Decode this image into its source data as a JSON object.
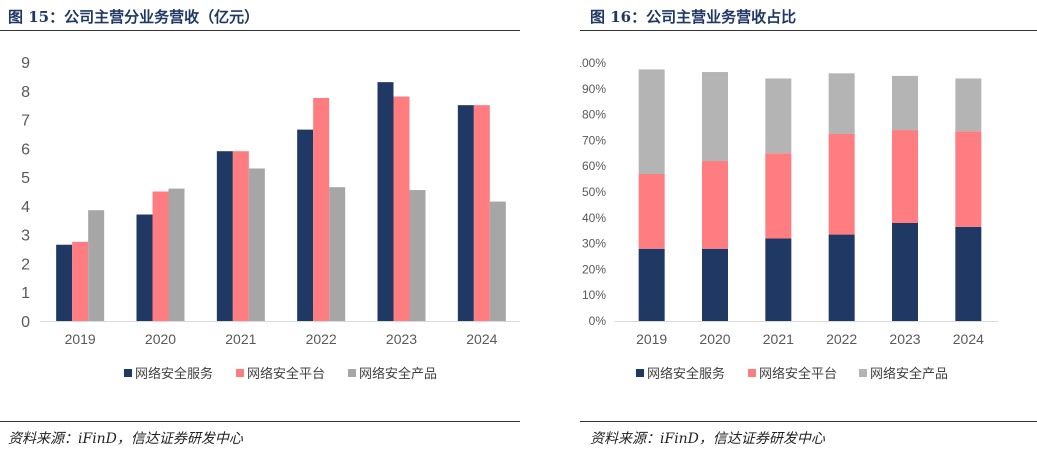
{
  "figures": [
    {
      "title": "图 15：公司主营分业务营收（亿元）",
      "source": "资料来源：iFinD，信达证券研发中心"
    },
    {
      "title": "图 16：公司主营业务营收占比",
      "source": "资料来源：iFinD，信达证券研发中心"
    }
  ],
  "chart_data": [
    {
      "type": "bar",
      "title": "图 15：公司主营分业务营收（亿元）",
      "categories": [
        "2019",
        "2020",
        "2021",
        "2022",
        "2023",
        "2024"
      ],
      "series": [
        {
          "name": "网络安全服务",
          "color": "#1f3864",
          "values": [
            2.65,
            3.7,
            5.9,
            6.65,
            8.3,
            7.5
          ]
        },
        {
          "name": "网络安全平台",
          "color": "#ff7c80",
          "values": [
            2.75,
            4.5,
            5.9,
            7.75,
            7.8,
            7.5
          ]
        },
        {
          "name": "网络安全产品",
          "color": "#a6a6a6",
          "values": [
            3.85,
            4.6,
            5.3,
            4.65,
            4.55,
            4.15
          ]
        }
      ],
      "ylim": [
        0,
        9
      ],
      "yticks": [
        "0",
        "1",
        "2",
        "3",
        "4",
        "5",
        "6",
        "7",
        "8",
        "9"
      ],
      "legend": "bottom",
      "grid": false
    },
    {
      "type": "bar",
      "stacked": true,
      "title": "图 16：公司主营业务营收占比",
      "categories": [
        "2019",
        "2020",
        "2021",
        "2022",
        "2023",
        "2024"
      ],
      "series": [
        {
          "name": "网络安全服务",
          "color": "#1f3864",
          "values": [
            0.28,
            0.28,
            0.32,
            0.335,
            0.38,
            0.365
          ]
        },
        {
          "name": "网络安全平台",
          "color": "#ff7c80",
          "values": [
            0.29,
            0.34,
            0.33,
            0.39,
            0.36,
            0.37
          ]
        },
        {
          "name": "网络安全产品",
          "color": "#b4b4b4",
          "values": [
            0.405,
            0.345,
            0.29,
            0.235,
            0.21,
            0.205
          ]
        }
      ],
      "ylim": [
        0,
        1
      ],
      "yticks": [
        "0%",
        "10%",
        "20%",
        "30%",
        "40%",
        "50%",
        "60%",
        "70%",
        "80%",
        "90%",
        "100%"
      ],
      "legend": "bottom",
      "grid": false
    }
  ]
}
